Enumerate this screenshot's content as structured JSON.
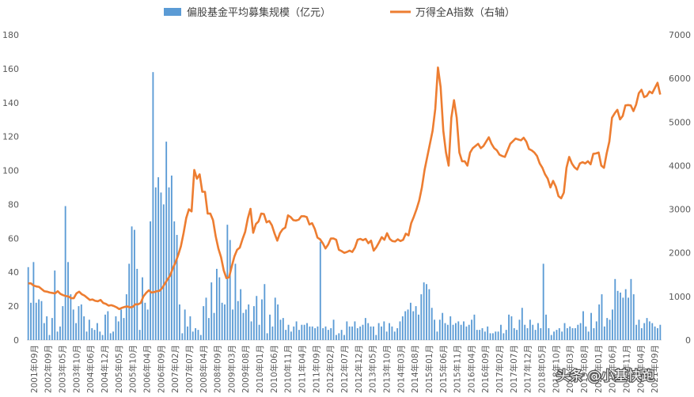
{
  "chart_data": {
    "type": "bar+line",
    "legend": {
      "bar_label": "偏股基金平均募集规模（亿元）",
      "line_label": "万得全A指数（右轴）",
      "position": "top"
    },
    "colors": {
      "bar": "#5b9bd5",
      "line": "#ed7d31",
      "tick_text": "#595959"
    },
    "y_left": {
      "min": 0,
      "max": 180,
      "step": 20,
      "ticks": [
        "0",
        "20",
        "40",
        "60",
        "80",
        "100",
        "120",
        "140",
        "160",
        "180"
      ]
    },
    "y_right": {
      "min": 0,
      "max": 7000,
      "step": 1000,
      "ticks": [
        "0",
        "1000",
        "2000",
        "3000",
        "4000",
        "5000",
        "6000",
        "7000"
      ]
    },
    "x_labels": [
      "2001年09月",
      "2002年09月",
      "2003年05月",
      "2003年10月",
      "2004年06月",
      "2004年12月",
      "2005年05月",
      "2005年10月",
      "2006年04月",
      "2006年09月",
      "2007年02月",
      "2007年07月",
      "2008年04月",
      "2008年09月",
      "2009年03月",
      "2009年08月",
      "2010年01月",
      "2010年06月",
      "2010年11月",
      "2011年04月",
      "2011年09月",
      "2012年02月",
      "2012年07月",
      "2012年12月",
      "2013年05月",
      "2013年10月",
      "2014年03月",
      "2014年08月",
      "2015年01月",
      "2015年06月",
      "2015年11月",
      "2016年04月",
      "2016年09月",
      "2017年02月",
      "2017年07月",
      "2017年12月",
      "2018年05月",
      "2018年10月",
      "2019年03月",
      "2019年08月",
      "2020年01月",
      "2020年06月",
      "2020年11月",
      "2021年04月",
      "2021年09月"
    ],
    "bar_values": [
      43,
      22,
      46,
      22,
      24,
      23,
      10,
      14,
      3,
      13,
      41,
      5,
      8,
      20,
      79,
      46,
      27,
      18,
      10,
      20,
      21,
      14,
      5,
      12,
      7,
      6,
      10,
      5,
      3,
      15,
      17,
      4,
      5,
      14,
      11,
      18,
      13,
      27,
      45,
      67,
      65,
      42,
      6,
      37,
      22,
      18,
      70,
      158,
      90,
      96,
      87,
      80,
      117,
      90,
      97,
      70,
      62,
      21,
      4,
      18,
      8,
      14,
      5,
      7,
      6,
      3,
      20,
      25,
      13,
      34,
      16,
      42,
      37,
      22,
      21,
      68,
      59,
      18,
      45,
      23,
      30,
      16,
      18,
      21,
      11,
      20,
      26,
      9,
      24,
      33,
      4,
      15,
      8,
      25,
      21,
      12,
      13,
      6,
      9,
      5,
      8,
      11,
      6,
      9,
      9,
      10,
      8,
      8,
      7,
      8,
      58,
      7,
      8,
      6,
      7,
      12,
      3,
      4,
      6,
      3,
      11,
      8,
      8,
      11,
      7,
      8,
      9,
      13,
      10,
      8,
      8,
      3,
      10,
      8,
      11,
      5,
      10,
      8,
      5,
      7,
      11,
      14,
      17,
      18,
      22,
      17,
      20,
      15,
      27,
      34,
      33,
      30,
      19,
      12,
      5,
      12,
      16,
      10,
      9,
      14,
      9,
      10,
      11,
      9,
      11,
      8,
      9,
      12,
      15,
      6,
      6,
      7,
      5,
      8,
      4,
      4,
      5,
      5,
      9,
      4,
      6,
      15,
      14,
      7,
      6,
      12,
      19,
      9,
      7,
      12,
      9,
      6,
      10,
      7,
      45,
      15,
      7,
      3,
      5,
      6,
      7,
      5,
      10,
      7,
      8,
      7,
      7,
      9,
      10,
      17,
      8,
      5,
      16,
      7,
      11,
      21,
      27,
      8,
      13,
      12,
      18,
      36,
      29,
      28,
      25,
      30,
      25,
      36,
      27,
      9,
      12,
      7,
      10,
      13,
      11,
      10,
      8,
      7,
      9
    ],
    "line_values": [
      1300,
      1300,
      1250,
      1230,
      1220,
      1170,
      1120,
      1110,
      1090,
      1080,
      1070,
      1120,
      1060,
      1030,
      1010,
      1000,
      960,
      960,
      1070,
      1110,
      1050,
      1020,
      970,
      920,
      930,
      900,
      890,
      920,
      850,
      830,
      790,
      800,
      780,
      750,
      710,
      740,
      760,
      770,
      750,
      760,
      820,
      820,
      850,
      1000,
      1080,
      1140,
      1090,
      1100,
      1120,
      1130,
      1190,
      1290,
      1390,
      1480,
      1650,
      1780,
      1950,
      2150,
      2450,
      2800,
      3000,
      2950,
      3900,
      3700,
      3800,
      3400,
      3400,
      2900,
      2900,
      2750,
      2380,
      2100,
      1900,
      1600,
      1420,
      1440,
      1690,
      1920,
      2070,
      2120,
      2310,
      2480,
      2790,
      3010,
      2460,
      2660,
      2720,
      2900,
      2890,
      2700,
      2730,
      2630,
      2440,
      2280,
      2450,
      2540,
      2580,
      2860,
      2820,
      2750,
      2740,
      2760,
      2840,
      2840,
      2820,
      2650,
      2680,
      2550,
      2350,
      2310,
      2220,
      2100,
      2190,
      2330,
      2330,
      2300,
      2070,
      2040,
      2000,
      2020,
      2050,
      2020,
      2120,
      2300,
      2320,
      2290,
      2320,
      2220,
      2280,
      2050,
      2130,
      2240,
      2360,
      2300,
      2450,
      2320,
      2270,
      2260,
      2310,
      2270,
      2300,
      2440,
      2400,
      2680,
      2830,
      3000,
      3200,
      3500,
      3900,
      4200,
      4500,
      4800,
      5300,
      6250,
      5800,
      4800,
      4300,
      4000,
      5100,
      5500,
      5100,
      4300,
      4100,
      4100,
      4000,
      4300,
      4400,
      4450,
      4500,
      4400,
      4450,
      4550,
      4650,
      4500,
      4400,
      4350,
      4250,
      4220,
      4200,
      4350,
      4500,
      4560,
      4620,
      4600,
      4580,
      4640,
      4550,
      4380,
      4350,
      4300,
      4220,
      4050,
      3950,
      3800,
      3700,
      3500,
      3650,
      3520,
      3300,
      3250,
      3380,
      3950,
      4200,
      4050,
      3960,
      3910,
      4050,
      4080,
      4050,
      4100,
      4030,
      4270,
      4280,
      4300,
      4000,
      3950,
      4280,
      4550,
      5100,
      5200,
      5280,
      5060,
      5140,
      5380,
      5390,
      5380,
      5250,
      5400,
      5660,
      5740,
      5570,
      5600,
      5700,
      5660,
      5780,
      5900,
      5630
    ]
  },
  "watermark": "头条 @小基快跑"
}
